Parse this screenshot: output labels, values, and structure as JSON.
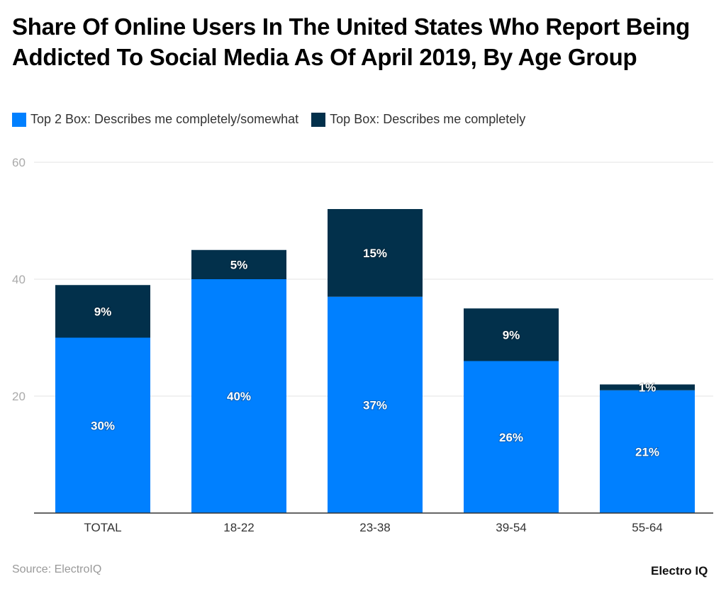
{
  "chart_data": {
    "type": "bar",
    "stacked": true,
    "title": "Share Of Online Users In The United States Who Report Being Addicted To Social Media As Of April 2019, By Age Group",
    "categories": [
      "TOTAL",
      "18-22",
      "23-38",
      "39-54",
      "55-64"
    ],
    "series": [
      {
        "name": "Top 2 Box: Describes me completely/somewhat",
        "values": [
          30,
          40,
          37,
          26,
          21
        ],
        "labels": [
          "30%",
          "40%",
          "37%",
          "26%",
          "21%"
        ],
        "color": "#0080ff"
      },
      {
        "name": "Top Box: Describes me completely",
        "values": [
          9,
          5,
          15,
          9,
          1
        ],
        "labels": [
          "9%",
          "5%",
          "15%",
          "9%",
          "1%"
        ],
        "color": "#02304b"
      }
    ],
    "yticks": [
      "20",
      "40",
      "60"
    ],
    "ylim": [
      0,
      60
    ],
    "grid": true,
    "legend": "top-left"
  },
  "source": "Source: ElectroIQ",
  "logo": "Electro IQ"
}
